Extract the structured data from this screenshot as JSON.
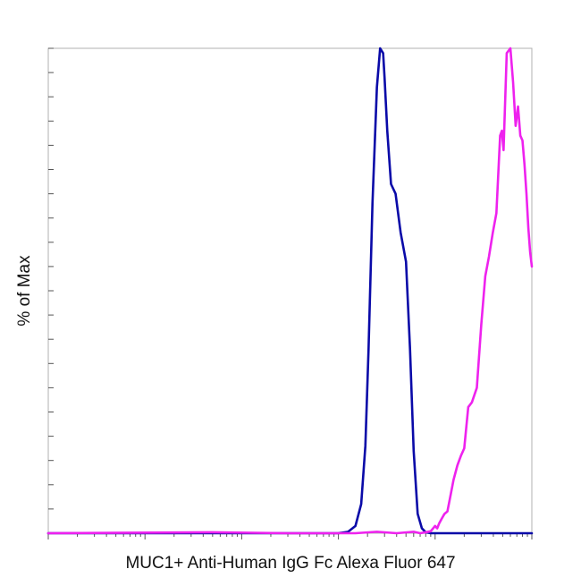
{
  "chart_data": {
    "type": "line",
    "title": "",
    "xlabel": "MUC1+ Anti-Human IgG Fc Alexa Fluor 647",
    "ylabel": "% of Max",
    "xscale": "log",
    "xlim": [
      1,
      100000
    ],
    "ylim": [
      0,
      100
    ],
    "grid": false,
    "legend": "none",
    "series": [
      {
        "color": "#0a0aa8",
        "x": [
          1,
          1000,
          1260,
          1500,
          1720,
          1900,
          2050,
          2250,
          2500,
          2700,
          2900,
          3000,
          3200,
          3500,
          3900,
          4400,
          5000,
          5500,
          6000,
          6600,
          7300,
          8000,
          9000,
          10000,
          12000,
          15000,
          20000,
          30000,
          50000,
          100000
        ],
        "y": [
          0,
          0,
          0.3,
          1.5,
          6,
          18,
          38,
          68,
          92,
          100,
          99,
          94,
          83,
          72,
          70,
          62,
          56,
          38,
          17,
          4,
          1,
          0.2,
          0,
          0,
          0,
          0,
          0,
          0,
          0,
          0
        ]
      },
      {
        "color": "#ee22ee",
        "x": [
          1,
          50,
          300,
          500,
          1000,
          1500,
          2500,
          4000,
          6000,
          7000,
          8000,
          9000,
          10000,
          10500,
          11000,
          11700,
          12500,
          13400,
          14500,
          15500,
          17000,
          18500,
          20000,
          22000,
          24000,
          27000,
          30000,
          33000,
          36000,
          39500,
          43000,
          47000,
          49000,
          51000,
          55000,
          60000,
          64000,
          68000,
          72000,
          76000,
          80000,
          84000,
          88000,
          92000,
          96000,
          100000
        ],
        "y": [
          0,
          0.2,
          0,
          0,
          0,
          0,
          0.3,
          0,
          0.3,
          0,
          0.2,
          0.4,
          1.5,
          1,
          2,
          3,
          4,
          4.5,
          8,
          11,
          14,
          16,
          17.5,
          26,
          27,
          30,
          43,
          53,
          57,
          62,
          66,
          82,
          83,
          79,
          99,
          100,
          93,
          84,
          88,
          82,
          81,
          76,
          70,
          63,
          58,
          55
        ]
      }
    ]
  }
}
